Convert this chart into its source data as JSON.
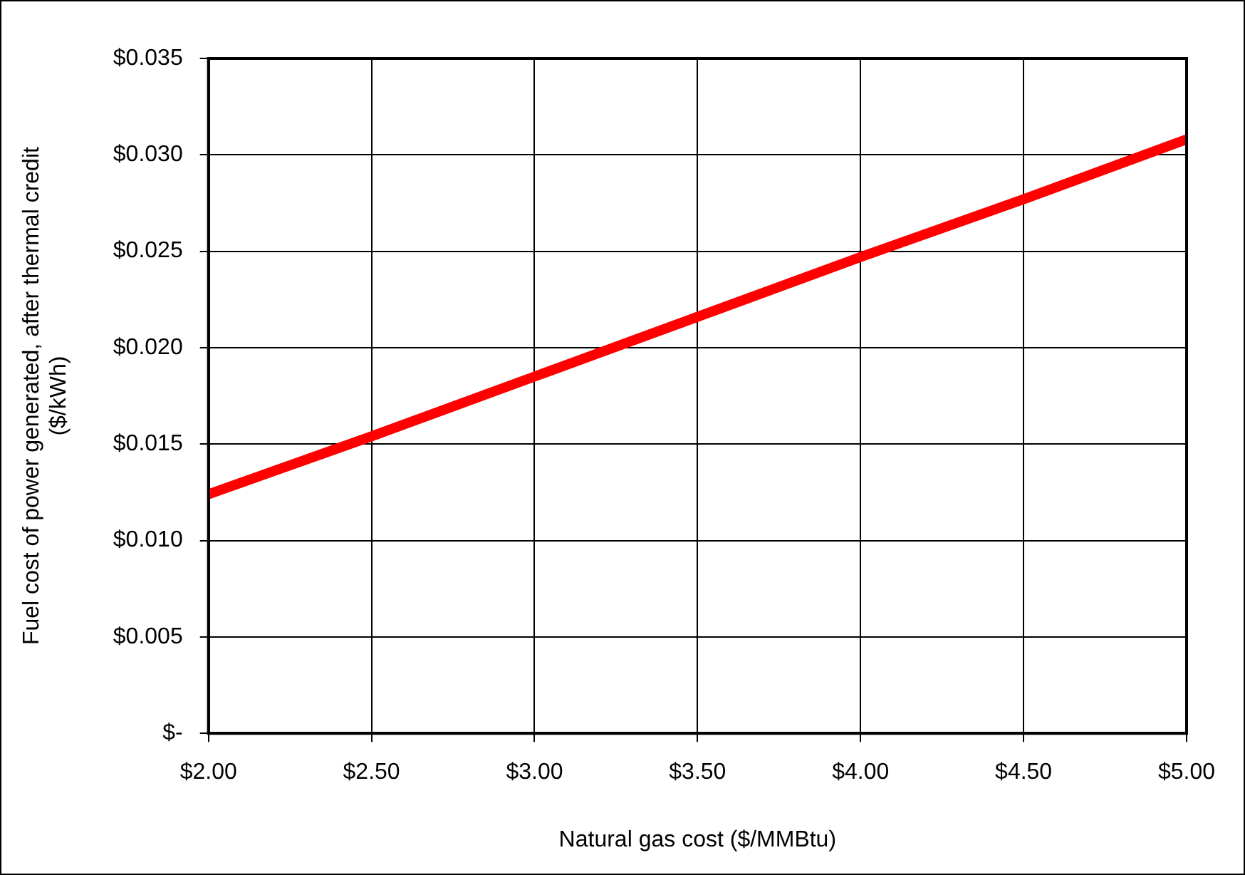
{
  "chart_data": {
    "type": "line",
    "xlabel": "Natural gas cost ($/MMBtu)",
    "ylabel": "Fuel cost of power generated, after thermal credit\n($/kWh)",
    "x": [
      2.0,
      2.5,
      3.0,
      3.5,
      4.0,
      4.5,
      5.0
    ],
    "series": [
      {
        "color": "#ff0000",
        "values": [
          0.0124,
          0.0154,
          0.0185,
          0.0216,
          0.0247,
          0.0277,
          0.0308
        ]
      }
    ],
    "xlim": [
      2.0,
      5.0
    ],
    "ylim": [
      0,
      0.035
    ],
    "xticks": [
      {
        "value": 2.0,
        "label": "$2.00"
      },
      {
        "value": 2.5,
        "label": "$2.50"
      },
      {
        "value": 3.0,
        "label": "$3.00"
      },
      {
        "value": 3.5,
        "label": "$3.50"
      },
      {
        "value": 4.0,
        "label": "$4.00"
      },
      {
        "value": 4.5,
        "label": "$4.50"
      },
      {
        "value": 5.0,
        "label": "$5.00"
      }
    ],
    "yticks": [
      {
        "value": 0,
        "label": "$-"
      },
      {
        "value": 0.005,
        "label": "$0.005"
      },
      {
        "value": 0.01,
        "label": "$0.010"
      },
      {
        "value": 0.015,
        "label": "$0.015"
      },
      {
        "value": 0.02,
        "label": "$0.020"
      },
      {
        "value": 0.025,
        "label": "$0.025"
      },
      {
        "value": 0.03,
        "label": "$0.030"
      },
      {
        "value": 0.035,
        "label": "$0.035"
      }
    ],
    "grid": true,
    "legend": false,
    "marker": "none",
    "line_style": "solid"
  }
}
